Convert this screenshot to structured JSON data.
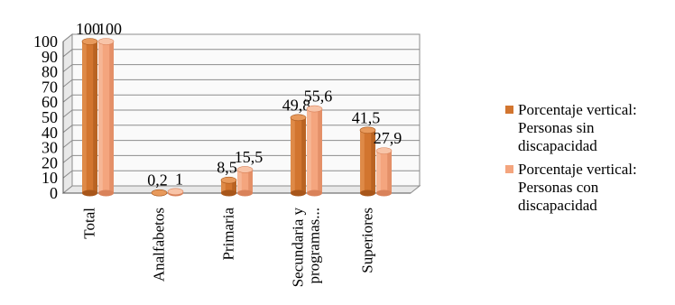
{
  "chart_data": {
    "type": "bar",
    "categories": [
      "Total",
      "Analfabetos",
      "Primaria",
      "Secundaria y programas...",
      "Superiores"
    ],
    "series": [
      {
        "name": "Porcentaje vertical: Personas sin discapacidad",
        "values": [
          100,
          0.2,
          8.5,
          49.8,
          41.5
        ],
        "labels": [
          "100",
          "0,2",
          "8,5",
          "49,8",
          "41,5"
        ]
      },
      {
        "name": "Porcentaje vertical: Personas con discapacidad",
        "values": [
          100,
          1,
          15.5,
          55.6,
          27.9
        ],
        "labels": [
          "100",
          "1",
          "15,5",
          "55,6",
          "27,9"
        ]
      }
    ],
    "yticks": [
      "0",
      "10",
      "20",
      "30",
      "40",
      "50",
      "60",
      "70",
      "80",
      "90",
      "100"
    ],
    "ylim": [
      0,
      100
    ],
    "grid": true,
    "legend_position": "right",
    "title": "",
    "xlabel": "",
    "ylabel": ""
  },
  "legend": {
    "items": [
      {
        "line1": "Porcentaje vertical:",
        "line2": "Personas sin",
        "line3": "discapacidad"
      },
      {
        "line1": "Porcentaje vertical:",
        "line2": "Personas con",
        "line3": "discapacidad"
      }
    ]
  },
  "colors": {
    "series_sin": "#D2752F",
    "series_sin_dark": "#A8561A",
    "series_sin_light": "#E89A5C",
    "series_con": "#F4A57E",
    "series_con_dark": "#D9825A",
    "series_con_light": "#F8C4A8",
    "grid": "#8C8C8C",
    "wall": "#E8E8E8"
  }
}
